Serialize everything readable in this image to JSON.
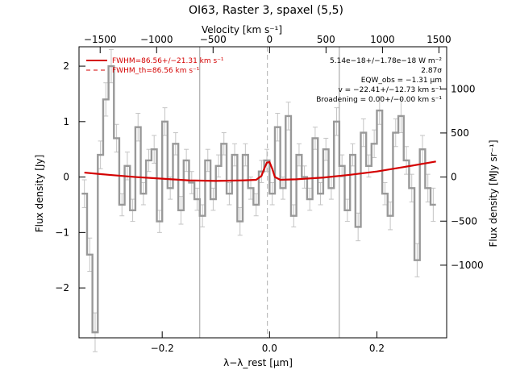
{
  "chart_data": {
    "type": "line",
    "title": "OI63, Raster 3, spaxel (5,5)",
    "xlabel": "λ−λ_rest [μm]",
    "ylabel_left": "Flux density [Jy]",
    "ylabel_right": "Flux density [MJy sr⁻¹]",
    "top_axis_label": "Velocity [km s⁻¹]",
    "xlim": [
      -0.355,
      0.33
    ],
    "ylim": [
      -2.9,
      2.35
    ],
    "x_ticks": [
      {
        "v": -0.2,
        "label": "−0.2"
      },
      {
        "v": 0.0,
        "label": "0.0"
      },
      {
        "v": 0.2,
        "label": "0.2"
      }
    ],
    "y_ticks": [
      {
        "v": -2,
        "label": "−2"
      },
      {
        "v": -1,
        "label": "−1"
      },
      {
        "v": 0,
        "label": "0"
      },
      {
        "v": 1,
        "label": "1"
      },
      {
        "v": 2,
        "label": "2"
      }
    ],
    "top_ticks": [
      {
        "v": -0.3156,
        "label": "−1500"
      },
      {
        "v": -0.2104,
        "label": "−1000"
      },
      {
        "v": -0.1052,
        "label": "−500"
      },
      {
        "v": 0.0,
        "label": "0"
      },
      {
        "v": 0.1052,
        "label": "500"
      },
      {
        "v": 0.2104,
        "label": "1000"
      },
      {
        "v": 0.3156,
        "label": "1500"
      }
    ],
    "right_ticks": [
      {
        "v": -1.59,
        "label": "−1000"
      },
      {
        "v": -0.795,
        "label": "−500"
      },
      {
        "v": 0.0,
        "label": "0"
      },
      {
        "v": 0.795,
        "label": "500"
      },
      {
        "v": 1.59,
        "label": "1000"
      }
    ],
    "vlines": [
      -0.13,
      0.13
    ],
    "center_line": -0.004,
    "legend": [
      {
        "label": "FWHM=86.56+/−21.31 km s⁻¹",
        "style": "solid",
        "color": "#d40000"
      },
      {
        "label": "FWHM_th=86.56 km s⁻¹",
        "style": "dashed",
        "color": "#d40000"
      }
    ],
    "annotations": [
      "5.14e−18+/−1.78e−18 W m⁻²",
      "2.87σ",
      "EQW_obs = −1.31 μm",
      "v = −22.41+/−12.73 km s⁻¹",
      "Broadening = 0.00+/−0.00 km s⁻¹"
    ],
    "series": [
      {
        "style": "steps",
        "color": "#999999",
        "x": [
          -0.345,
          -0.335,
          -0.325,
          -0.315,
          -0.305,
          -0.295,
          -0.285,
          -0.275,
          -0.265,
          -0.255,
          -0.245,
          -0.235,
          -0.225,
          -0.215,
          -0.205,
          -0.195,
          -0.185,
          -0.175,
          -0.165,
          -0.155,
          -0.145,
          -0.135,
          -0.125,
          -0.115,
          -0.105,
          -0.095,
          -0.085,
          -0.075,
          -0.065,
          -0.055,
          -0.045,
          -0.035,
          -0.025,
          -0.015,
          -0.005,
          0.005,
          0.015,
          0.025,
          0.035,
          0.045,
          0.055,
          0.065,
          0.075,
          0.085,
          0.095,
          0.105,
          0.115,
          0.125,
          0.135,
          0.145,
          0.155,
          0.165,
          0.175,
          0.185,
          0.195,
          0.205,
          0.215,
          0.225,
          0.235,
          0.245,
          0.255,
          0.265,
          0.275,
          0.285,
          0.295,
          0.305
        ],
        "y": [
          -0.3,
          -1.4,
          -2.8,
          0.4,
          1.4,
          2.0,
          0.7,
          -0.5,
          0.2,
          -0.6,
          0.9,
          -0.3,
          0.3,
          0.5,
          -0.8,
          1.0,
          -0.2,
          0.6,
          -0.6,
          0.3,
          -0.1,
          -0.4,
          -0.7,
          0.3,
          -0.4,
          0.2,
          0.6,
          -0.3,
          0.4,
          -0.8,
          0.4,
          -0.2,
          -0.5,
          0.1,
          0.3,
          -0.3,
          0.9,
          -0.2,
          1.1,
          -0.7,
          0.4,
          0.0,
          -0.4,
          0.7,
          -0.3,
          0.5,
          -0.2,
          1.0,
          0.2,
          -0.6,
          0.4,
          -0.9,
          0.8,
          0.2,
          0.6,
          1.2,
          -0.3,
          -0.7,
          0.8,
          1.1,
          0.3,
          -0.2,
          -1.5,
          0.5,
          -0.2,
          -0.5
        ],
        "err": [
          0.25,
          0.3,
          0.35,
          0.25,
          0.3,
          0.3,
          0.25,
          0.2,
          0.25,
          0.2,
          0.25,
          0.2,
          0.2,
          0.25,
          0.2,
          0.25,
          0.2,
          0.2,
          0.25,
          0.2,
          0.2,
          0.2,
          0.2,
          0.2,
          0.2,
          0.2,
          0.2,
          0.2,
          0.2,
          0.25,
          0.2,
          0.2,
          0.2,
          0.2,
          0.2,
          0.2,
          0.25,
          0.2,
          0.25,
          0.2,
          0.2,
          0.2,
          0.2,
          0.2,
          0.2,
          0.2,
          0.2,
          0.25,
          0.2,
          0.2,
          0.2,
          0.25,
          0.25,
          0.2,
          0.25,
          0.25,
          0.2,
          0.25,
          0.25,
          0.3,
          0.25,
          0.25,
          0.3,
          0.25,
          0.25,
          0.3
        ]
      },
      {
        "style": "line",
        "color": "#d40000",
        "x": [
          -0.345,
          -0.3,
          -0.25,
          -0.2,
          -0.15,
          -0.1,
          -0.05,
          -0.025,
          -0.015,
          -0.01,
          -0.005,
          0.0,
          0.005,
          0.01,
          0.02,
          0.05,
          0.1,
          0.15,
          0.2,
          0.25,
          0.31
        ],
        "y": [
          0.08,
          0.04,
          0.0,
          -0.03,
          -0.06,
          -0.07,
          -0.06,
          -0.05,
          0.02,
          0.15,
          0.26,
          0.27,
          0.15,
          0.0,
          -0.05,
          -0.04,
          -0.01,
          0.04,
          0.1,
          0.18,
          0.28
        ]
      }
    ]
  }
}
